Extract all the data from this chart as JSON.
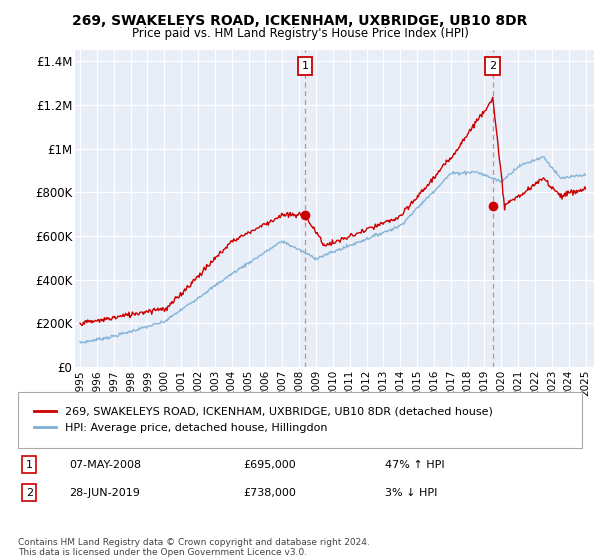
{
  "title": "269, SWAKELEYS ROAD, ICKENHAM, UXBRIDGE, UB10 8DR",
  "subtitle": "Price paid vs. HM Land Registry's House Price Index (HPI)",
  "ylabel_ticks": [
    "£0",
    "£200K",
    "£400K",
    "£600K",
    "£800K",
    "£1M",
    "£1.2M",
    "£1.4M"
  ],
  "ytick_values": [
    0,
    200000,
    400000,
    600000,
    800000,
    1000000,
    1200000,
    1400000
  ],
  "ylim": [
    0,
    1450000
  ],
  "xlim_start": 1994.7,
  "xlim_end": 2025.5,
  "xtick_years": [
    1995,
    1996,
    1997,
    1998,
    1999,
    2000,
    2001,
    2002,
    2003,
    2004,
    2005,
    2006,
    2007,
    2008,
    2009,
    2010,
    2011,
    2012,
    2013,
    2014,
    2015,
    2016,
    2017,
    2018,
    2019,
    2020,
    2021,
    2022,
    2023,
    2024,
    2025
  ],
  "sale1_x": 2008.35,
  "sale1_y": 695000,
  "sale1_label": "1",
  "sale2_x": 2019.49,
  "sale2_y": 738000,
  "sale2_label": "2",
  "vline1_x": 2008.35,
  "vline2_x": 2019.49,
  "red_line_color": "#cc0000",
  "blue_line_color": "#7bafd4",
  "sale_dot_color": "#cc0000",
  "vline_color": "#e88080",
  "legend_label1": "269, SWAKELEYS ROAD, ICKENHAM, UXBRIDGE, UB10 8DR (detached house)",
  "legend_label2": "HPI: Average price, detached house, Hillingdon",
  "annotation1_num": "1",
  "annotation1_date": "07-MAY-2008",
  "annotation1_price": "£695,000",
  "annotation1_hpi": "47% ↑ HPI",
  "annotation2_num": "2",
  "annotation2_date": "28-JUN-2019",
  "annotation2_price": "£738,000",
  "annotation2_hpi": "3% ↓ HPI",
  "footer": "Contains HM Land Registry data © Crown copyright and database right 2024.\nThis data is licensed under the Open Government Licence v3.0.",
  "plot_bg_color": "#e8eef8",
  "grid_color": "#ffffff",
  "fig_bg_color": "#ffffff"
}
